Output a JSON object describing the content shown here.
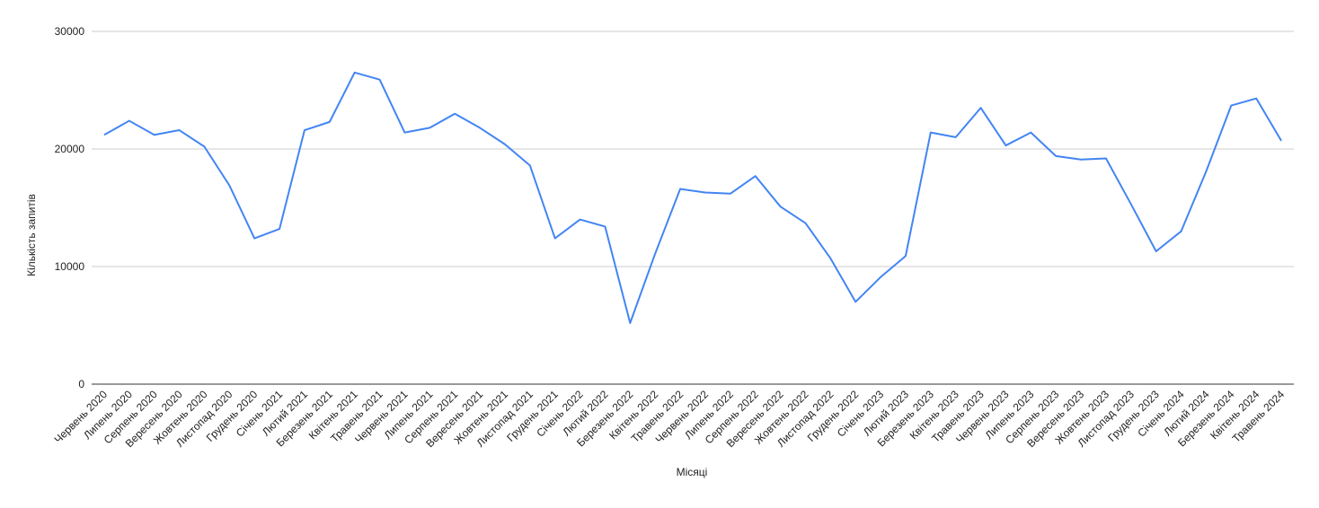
{
  "chart_data": {
    "type": "line",
    "x_label": "Місяці",
    "y_label": "Кількість запитів",
    "categories": [
      "Червень 2020",
      "Липень 2020",
      "Серпень 2020",
      "Вересень 2020",
      "Жовтень 2020",
      "Листопад 2020",
      "Грудень 2020",
      "Січень 2021",
      "Лютий 2021",
      "Березень 2021",
      "Квітень 2021",
      "Травень 2021",
      "Червень 2021",
      "Липень 2021",
      "Серпень 2021",
      "Вересень 2021",
      "Жовтень 2021",
      "Листопад 2021",
      "Грудень 2021",
      "Січень 2022",
      "Лютий 2022",
      "Березень 2022",
      "Квітень 2022",
      "Травень 2022",
      "Червень 2022",
      "Липень 2022",
      "Серпень 2022",
      "Вересень 2022",
      "Жовтень 2022",
      "Листопад 2022",
      "Грудень 2022",
      "Січень 2023",
      "Лютий 2023",
      "Березень 2023",
      "Квітень 2023",
      "Травень 2023",
      "Червень 2023",
      "Липень 2023",
      "Серпень 2023",
      "Вересень 2023",
      "Жовтень 2023",
      "Листопад 2023",
      "Грудень 2023",
      "Січень 2024",
      "Лютий 2024",
      "Березень 2024",
      "Квітень 2024",
      "Травень 2024"
    ],
    "values": [
      21200,
      22400,
      21200,
      21600,
      20200,
      16900,
      12400,
      13200,
      21600,
      22300,
      26500,
      25900,
      21400,
      21800,
      23000,
      21800,
      20400,
      18600,
      12400,
      14000,
      13400,
      5200,
      11100,
      16600,
      16300,
      16200,
      17700,
      15100,
      13700,
      10700,
      7000,
      9100,
      10900,
      21400,
      21000,
      23500,
      20300,
      21400,
      19400,
      19100,
      19200,
      15300,
      11300,
      13000,
      18100,
      23700,
      24300,
      20700
    ],
    "color": "#4285f4",
    "ylim": [
      0,
      30000
    ],
    "yticks": [
      0,
      10000,
      20000,
      30000
    ],
    "grid": true
  }
}
